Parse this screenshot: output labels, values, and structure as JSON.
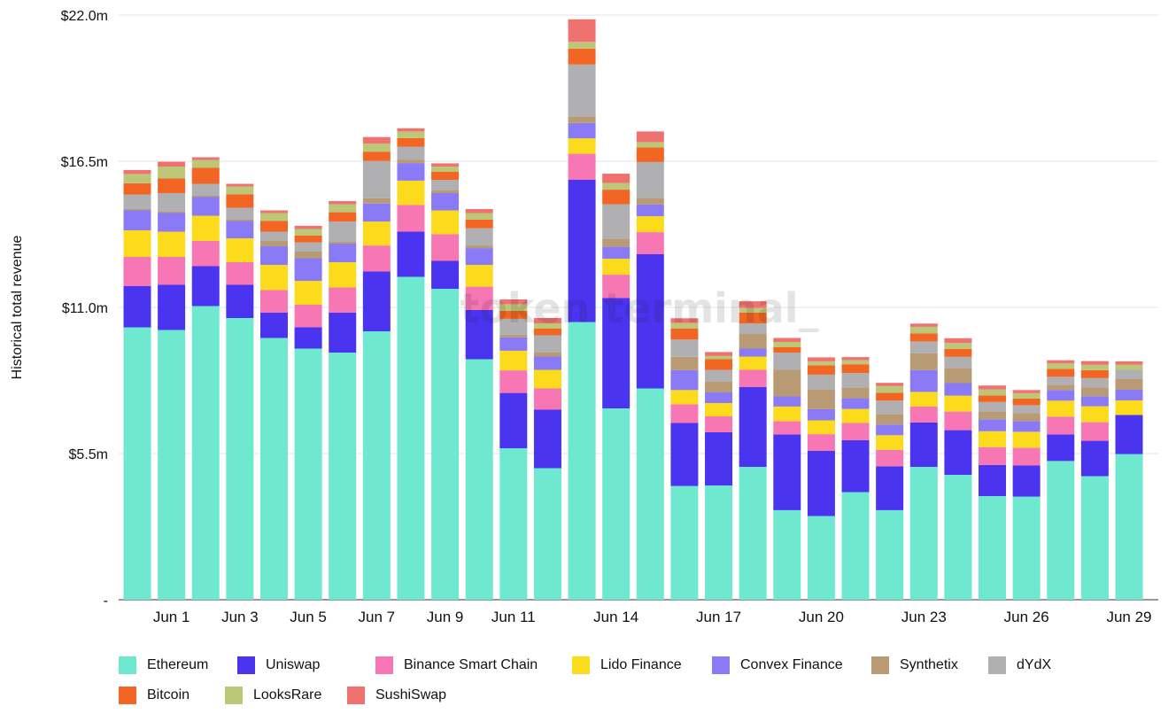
{
  "chart_data": {
    "type": "bar",
    "stacked": true,
    "ylabel": "Historical total revenue",
    "watermark": "token terminal_",
    "ylim": [
      0,
      22
    ],
    "yticks": [
      0,
      5.5,
      11,
      16.5,
      22
    ],
    "ytick_labels": [
      "-",
      "$5.5m",
      "$11.0m",
      "$16.5m",
      "$22.0m"
    ],
    "categories": [
      "May 31",
      "Jun 1",
      "Jun 2",
      "Jun 3",
      "Jun 4",
      "Jun 5",
      "Jun 6",
      "Jun 7",
      "Jun 8",
      "Jun 9",
      "Jun 10",
      "Jun 11",
      "Jun 12",
      "Jun 13",
      "Jun 14",
      "Jun 15",
      "Jun 16",
      "Jun 17",
      "Jun 18",
      "Jun 19",
      "Jun 20",
      "Jun 21",
      "Jun 22",
      "Jun 23",
      "Jun 24",
      "Jun 25",
      "Jun 26",
      "Jun 27",
      "Jun 28",
      "Jun 29"
    ],
    "xtick_labels": [
      {
        "index": 1,
        "label": "Jun 1"
      },
      {
        "index": 3,
        "label": "Jun 3"
      },
      {
        "index": 5,
        "label": "Jun 5"
      },
      {
        "index": 7,
        "label": "Jun 7"
      },
      {
        "index": 9,
        "label": "Jun 9"
      },
      {
        "index": 11,
        "label": "Jun 11"
      },
      {
        "index": 14,
        "label": "Jun 14"
      },
      {
        "index": 17,
        "label": "Jun 17"
      },
      {
        "index": 20,
        "label": "Jun 20"
      },
      {
        "index": 23,
        "label": "Jun 23"
      },
      {
        "index": 26,
        "label": "Jun 26"
      },
      {
        "index": 29,
        "label": "Jun 29"
      }
    ],
    "series": [
      {
        "name": "Ethereum",
        "color": "#6ee8cf",
        "values": [
          10.25,
          10.15,
          11.05,
          10.6,
          9.85,
          9.45,
          9.3,
          10.1,
          12.15,
          11.7,
          9.05,
          5.7,
          4.95,
          10.45,
          7.2,
          7.95,
          4.28,
          4.3,
          5.0,
          3.37,
          3.15,
          4.05,
          3.37,
          5.0,
          4.7,
          3.9,
          3.88,
          5.22,
          4.65,
          5.48
        ]
      },
      {
        "name": "Uniswap",
        "color": "#4a34f0",
        "values": [
          1.55,
          1.7,
          1.5,
          1.25,
          0.95,
          0.8,
          1.5,
          2.25,
          1.7,
          1.05,
          1.85,
          2.08,
          2.2,
          5.35,
          4.15,
          5.05,
          2.37,
          2.0,
          3.0,
          2.85,
          2.45,
          1.95,
          1.65,
          1.67,
          1.68,
          1.17,
          1.17,
          1.0,
          1.33,
          1.47
        ]
      },
      {
        "name": "Binance Smart Chain",
        "color": "#f776b4",
        "values": [
          1.1,
          1.05,
          0.95,
          0.85,
          0.85,
          0.85,
          0.95,
          0.98,
          1.0,
          1.0,
          0.88,
          0.85,
          0.8,
          0.98,
          0.88,
          0.83,
          0.7,
          0.6,
          0.65,
          0.5,
          0.63,
          0.65,
          0.62,
          0.6,
          0.7,
          0.67,
          0.67,
          0.67,
          0.7,
          0.0
        ]
      },
      {
        "name": "Lido Finance",
        "color": "#fbdb1c",
        "values": [
          1.0,
          0.95,
          0.95,
          0.9,
          0.95,
          0.9,
          0.95,
          0.9,
          0.92,
          0.9,
          0.82,
          0.74,
          0.7,
          0.58,
          0.6,
          0.6,
          0.54,
          0.5,
          0.5,
          0.55,
          0.52,
          0.53,
          0.55,
          0.55,
          0.6,
          0.6,
          0.6,
          0.6,
          0.6,
          0.55
        ]
      },
      {
        "name": "Convex Finance",
        "color": "#8a7af5",
        "values": [
          0.75,
          0.7,
          0.7,
          0.65,
          0.7,
          0.85,
          0.7,
          0.68,
          0.66,
          0.65,
          0.63,
          0.5,
          0.5,
          0.58,
          0.45,
          0.44,
          0.75,
          0.4,
          0.3,
          0.38,
          0.42,
          0.4,
          0.4,
          0.82,
          0.47,
          0.45,
          0.4,
          0.4,
          0.38,
          0.4
        ]
      },
      {
        "name": "Synthetix",
        "color": "#b89a74",
        "values": [
          0.05,
          0.05,
          0.05,
          0.05,
          0.2,
          0.25,
          0.08,
          0.2,
          0.12,
          0.1,
          0.1,
          0.1,
          0.15,
          0.25,
          0.3,
          0.25,
          0.5,
          0.4,
          0.55,
          1.0,
          0.75,
          0.4,
          0.4,
          0.63,
          0.57,
          0.3,
          0.3,
          0.2,
          0.33,
          0.4
        ]
      },
      {
        "name": "dYdX",
        "color": "#b0b0b3",
        "values": [
          0.55,
          0.7,
          0.45,
          0.45,
          0.35,
          0.35,
          0.75,
          1.4,
          0.5,
          0.4,
          0.65,
          0.6,
          0.65,
          1.95,
          1.3,
          1.35,
          0.65,
          0.45,
          0.4,
          0.65,
          0.55,
          0.55,
          0.5,
          0.45,
          0.42,
          0.35,
          0.3,
          0.3,
          0.35,
          0.35
        ]
      },
      {
        "name": "Bitcoin",
        "color": "#f26522",
        "values": [
          0.42,
          0.55,
          0.6,
          0.5,
          0.4,
          0.25,
          0.35,
          0.35,
          0.32,
          0.3,
          0.32,
          0.3,
          0.25,
          0.6,
          0.55,
          0.55,
          0.42,
          0.4,
          0.4,
          0.2,
          0.35,
          0.33,
          0.3,
          0.3,
          0.3,
          0.25,
          0.25,
          0.3,
          0.3,
          0.0
        ]
      },
      {
        "name": "LooksRare",
        "color": "#bcc878",
        "values": [
          0.35,
          0.45,
          0.3,
          0.3,
          0.3,
          0.25,
          0.3,
          0.3,
          0.25,
          0.2,
          0.25,
          0.25,
          0.2,
          0.25,
          0.25,
          0.2,
          0.2,
          0.12,
          0.18,
          0.2,
          0.15,
          0.15,
          0.25,
          0.25,
          0.22,
          0.22,
          0.2,
          0.2,
          0.2,
          0.2
        ]
      },
      {
        "name": "SushiSwap",
        "color": "#ef7170",
        "values": [
          0.15,
          0.18,
          0.1,
          0.1,
          0.1,
          0.12,
          0.12,
          0.25,
          0.12,
          0.12,
          0.15,
          0.18,
          0.2,
          0.85,
          0.35,
          0.4,
          0.18,
          0.15,
          0.25,
          0.15,
          0.15,
          0.12,
          0.12,
          0.12,
          0.18,
          0.15,
          0.12,
          0.12,
          0.14,
          0.12
        ]
      }
    ]
  }
}
